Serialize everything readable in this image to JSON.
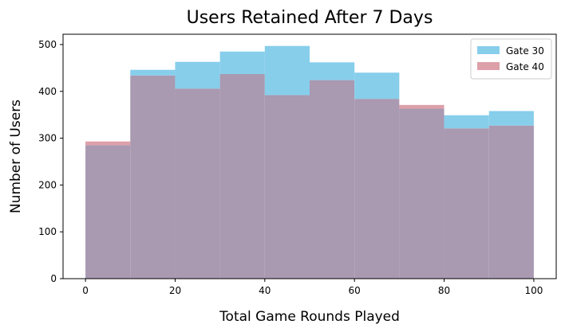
{
  "chart_data": {
    "type": "bar",
    "title": "Users Retained After 7 Days",
    "xlabel": "Total Game Rounds Played",
    "ylabel": "Number of Users",
    "xlim": [
      -5,
      105
    ],
    "ylim": [
      0,
      522
    ],
    "xticks": [
      0,
      20,
      40,
      60,
      80,
      100
    ],
    "yticks": [
      0,
      100,
      200,
      300,
      400,
      500
    ],
    "bin_edges": [
      0,
      10,
      20,
      30,
      40,
      50,
      60,
      70,
      80,
      90,
      100
    ],
    "grid": false,
    "legend_position": "top-right",
    "series": [
      {
        "name": "Gate 30",
        "color": "#87ceeb",
        "values": [
          285,
          446,
          463,
          485,
          497,
          462,
          440,
          363,
          349,
          358
        ]
      },
      {
        "name": "Gate 40",
        "color": "#dda0a8",
        "values": [
          293,
          434,
          406,
          437,
          392,
          424,
          384,
          371,
          321,
          327
        ]
      }
    ],
    "overlap_color": "#a999b1"
  }
}
